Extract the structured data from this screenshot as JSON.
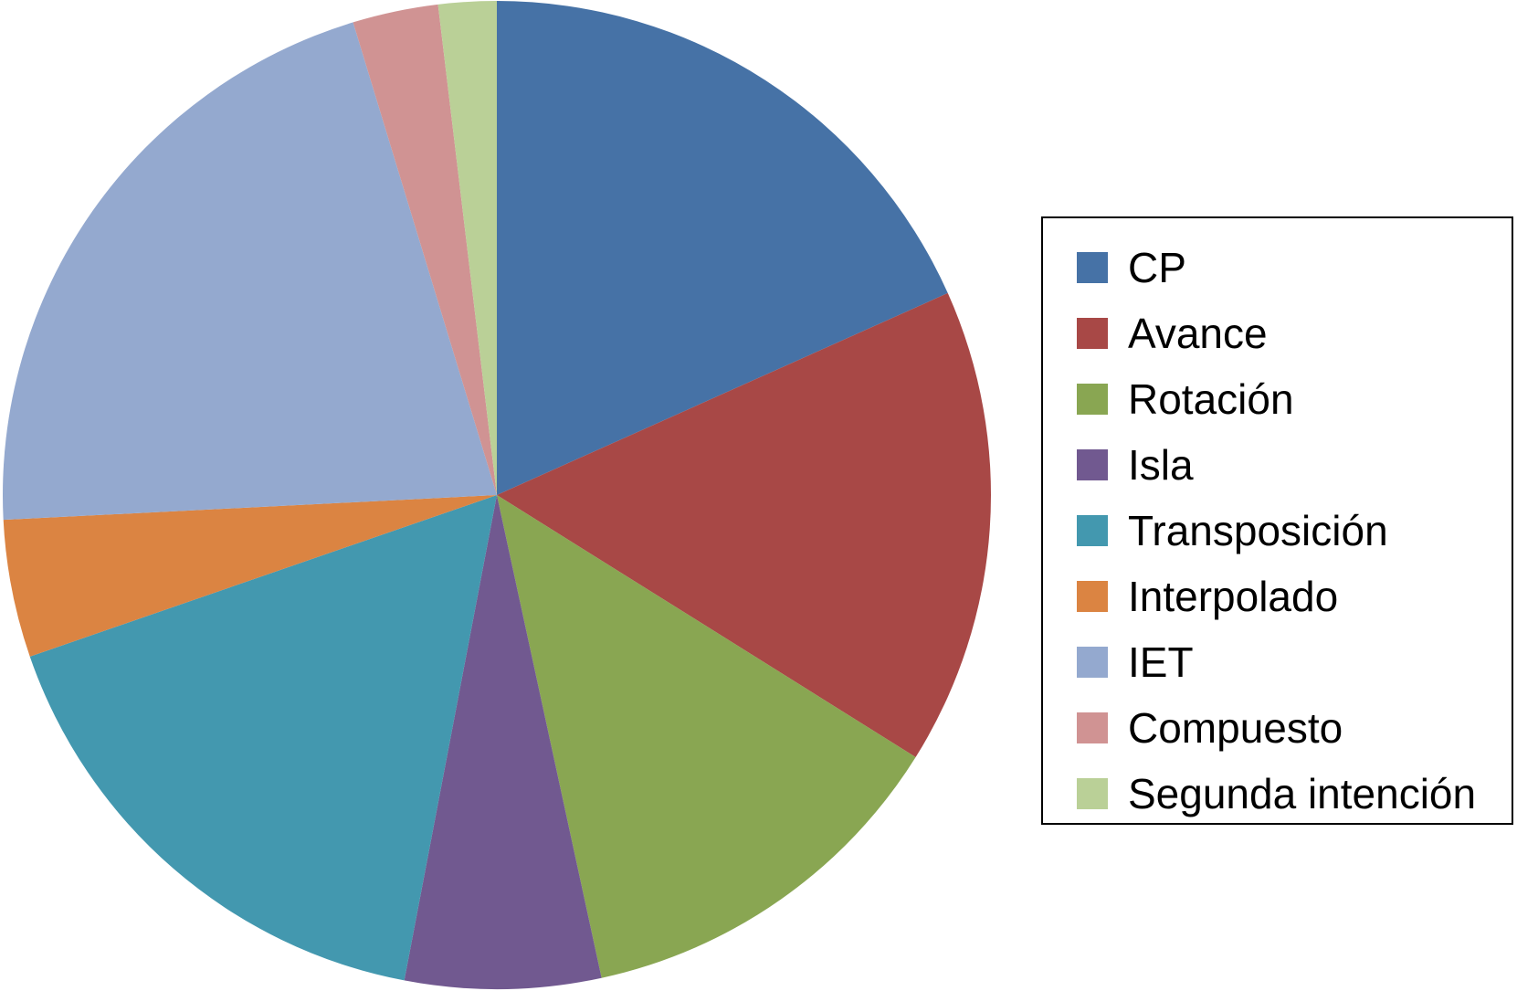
{
  "chart_data": {
    "type": "pie",
    "title": "",
    "start_angle": "12 o'clock",
    "direction": "clockwise",
    "legend_position": "right",
    "slices": [
      {
        "label": "CP",
        "value": 18.3,
        "color": "#4672A6"
      },
      {
        "label": "Avance",
        "value": 15.6,
        "color": "#A84846"
      },
      {
        "label": "Rotación",
        "value": 12.7,
        "color": "#89A652"
      },
      {
        "label": "Isla",
        "value": 6.4,
        "color": "#715990"
      },
      {
        "label": "Transposición",
        "value": 16.7,
        "color": "#4398AF"
      },
      {
        "label": "Interpolado",
        "value": 4.5,
        "color": "#DB8442"
      },
      {
        "label": "IET",
        "value": 21.1,
        "color": "#94A9CF"
      },
      {
        "label": "Compuesto",
        "value": 2.8,
        "color": "#D09393"
      },
      {
        "label": "Segunda intención",
        "value": 1.9,
        "color": "#BAD097"
      }
    ]
  }
}
